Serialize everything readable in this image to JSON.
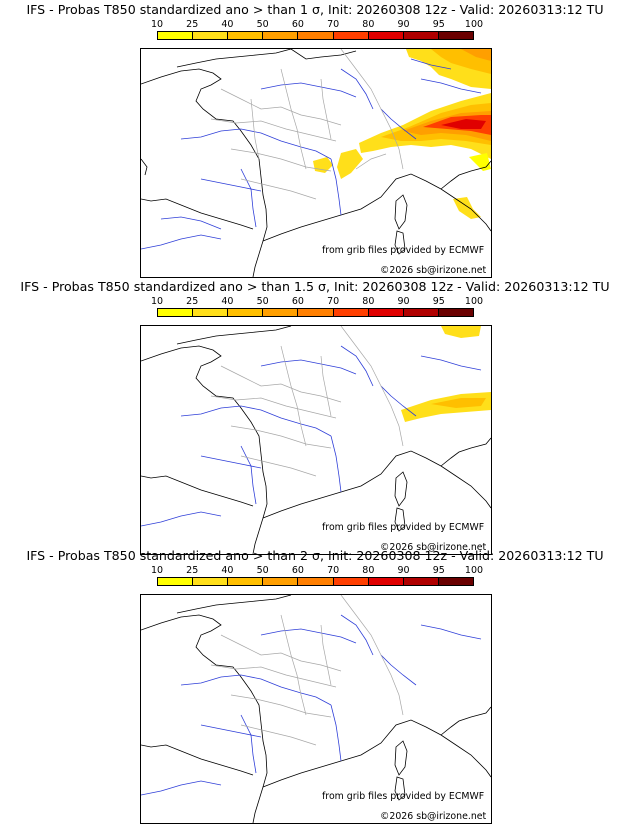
{
  "panels": [
    {
      "title": "IFS - Probas T850  standardized ano > than 1 σ, Init: 20260308 12z - Valid: 20260313:12 TU"
    },
    {
      "title": "IFS - Probas T850  standardized ano > than 1.5 σ, Init: 20260308 12z - Valid: 20260313:12 TU"
    },
    {
      "title": "IFS - Probas T850  standardized ano > than 2 σ, Init: 20260308 12z - Valid: 20260313:12 TU"
    }
  ],
  "colorbar": {
    "ticks": [
      "10",
      "25",
      "40",
      "50",
      "60",
      "70",
      "80",
      "90",
      "95",
      "100"
    ],
    "colors": [
      "#ffff00",
      "#ffdf1a",
      "#ffbf00",
      "#ff9f00",
      "#ff7f00",
      "#ff3f00",
      "#e00000",
      "#b00000",
      "#6a0000"
    ]
  },
  "credits": {
    "source": "from grib files provided by ECMWF",
    "copyright": "©2026 sb@irizone.net"
  },
  "colors": {
    "coast": "#000000",
    "rivers": "#2f3fd8",
    "borders": "#a8a8a8"
  }
}
